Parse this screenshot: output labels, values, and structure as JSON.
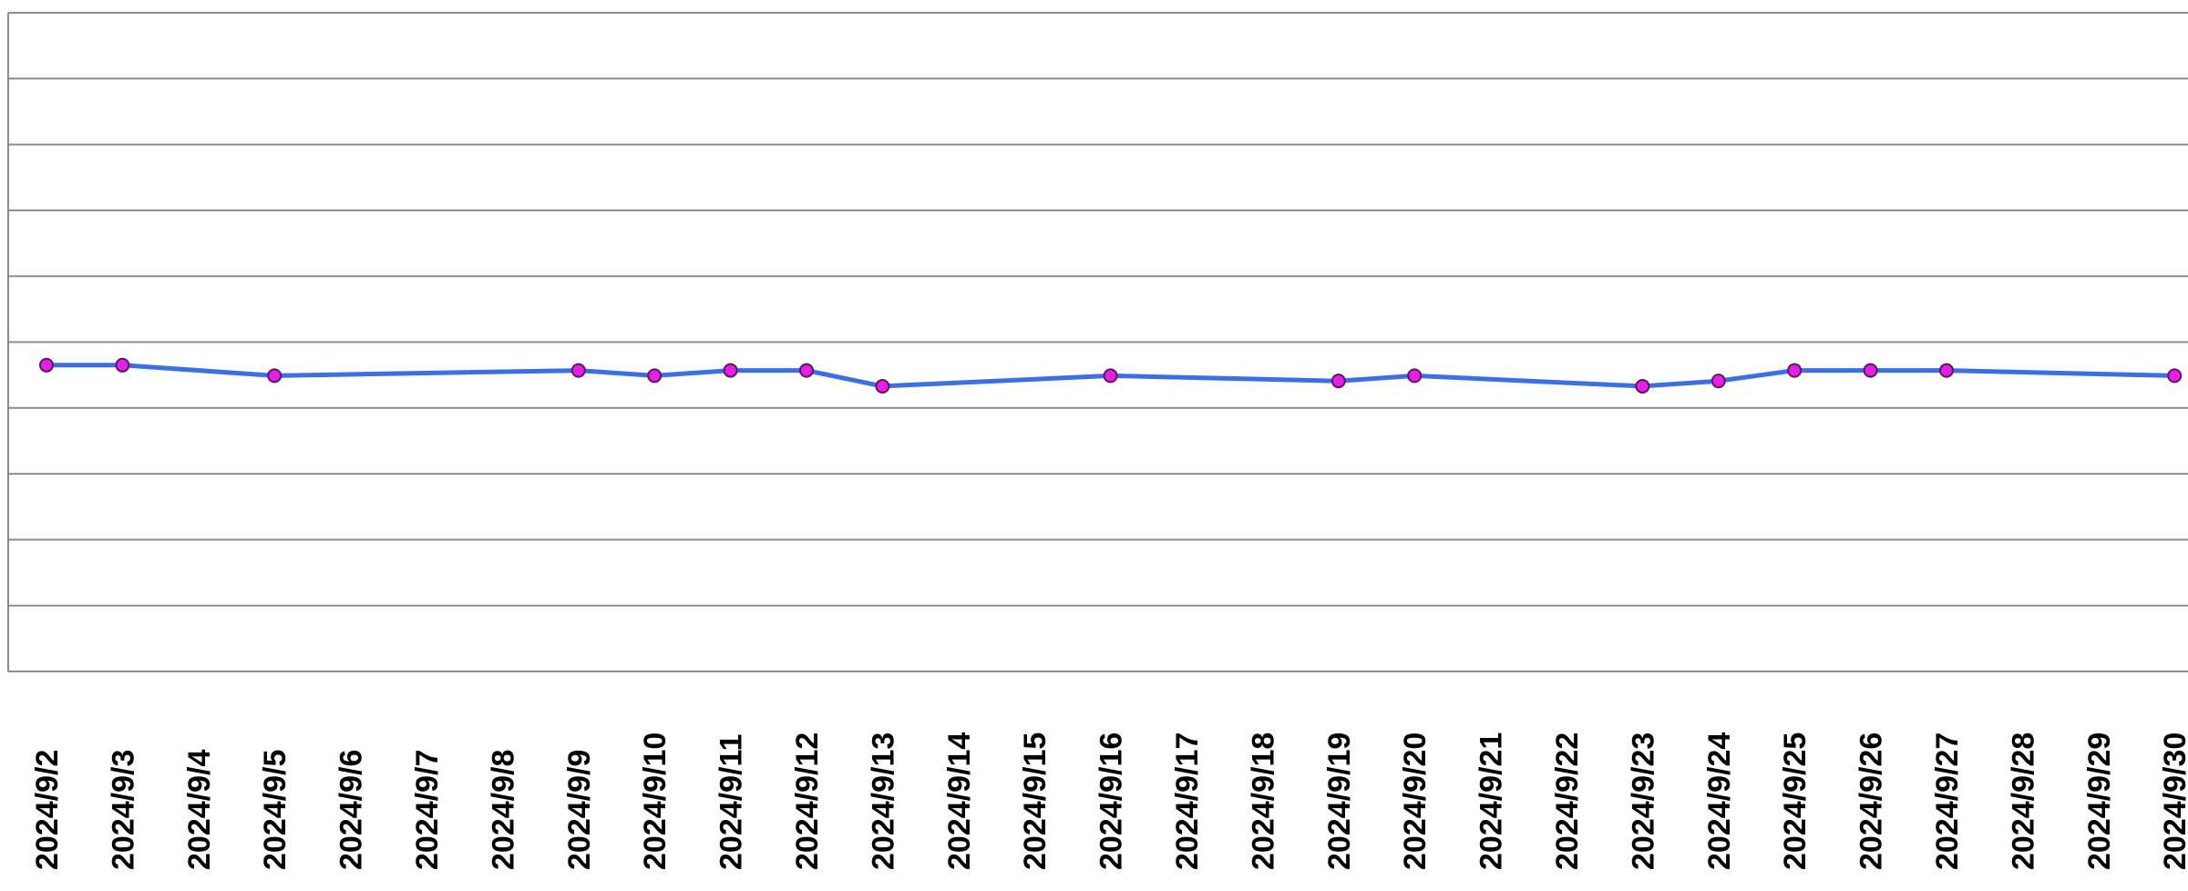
{
  "chart_data": {
    "type": "line",
    "title": "",
    "xlabel": "",
    "ylabel": "",
    "categories": [
      "2024/9/2",
      "2024/9/3",
      "2024/9/4",
      "2024/9/5",
      "2024/9/6",
      "2024/9/7",
      "2024/9/8",
      "2024/9/9",
      "2024/9/10",
      "2024/9/11",
      "2024/9/12",
      "2024/9/13",
      "2024/9/14",
      "2024/9/15",
      "2024/9/16",
      "2024/9/17",
      "2024/9/18",
      "2024/9/19",
      "2024/9/20",
      "2024/9/21",
      "2024/9/22",
      "2024/9/23",
      "2024/9/24",
      "2024/9/25",
      "2024/9/26",
      "2024/9/27",
      "2024/9/28",
      "2024/9/29",
      "2024/9/30"
    ],
    "series": [
      {
        "points": [
          {
            "x": "2024/9/2",
            "y": 4.65
          },
          {
            "x": "2024/9/3",
            "y": 4.65
          },
          {
            "x": "2024/9/5",
            "y": 4.49
          },
          {
            "x": "2024/9/9",
            "y": 4.57
          },
          {
            "x": "2024/9/10",
            "y": 4.49
          },
          {
            "x": "2024/9/11",
            "y": 4.57
          },
          {
            "x": "2024/9/12",
            "y": 4.57
          },
          {
            "x": "2024/9/13",
            "y": 4.33
          },
          {
            "x": "2024/9/16",
            "y": 4.49
          },
          {
            "x": "2024/9/19",
            "y": 4.41
          },
          {
            "x": "2024/9/20",
            "y": 4.49
          },
          {
            "x": "2024/9/23",
            "y": 4.33
          },
          {
            "x": "2024/9/24",
            "y": 4.41
          },
          {
            "x": "2024/9/25",
            "y": 4.57
          },
          {
            "x": "2024/9/26",
            "y": 4.57
          },
          {
            "x": "2024/9/27",
            "y": 4.57
          },
          {
            "x": "2024/9/30",
            "y": 4.49
          }
        ]
      }
    ],
    "ylim": [
      0,
      10
    ],
    "y_gridlines": 10,
    "grid": true,
    "legend": "none",
    "colors": {
      "line": "#3a6fe8",
      "marker_fill": "#e61ee6",
      "marker_stroke": "#5a1a5a",
      "grid": "#8c8c8c",
      "axis": "#8c8c8c",
      "label": "#000000"
    }
  }
}
